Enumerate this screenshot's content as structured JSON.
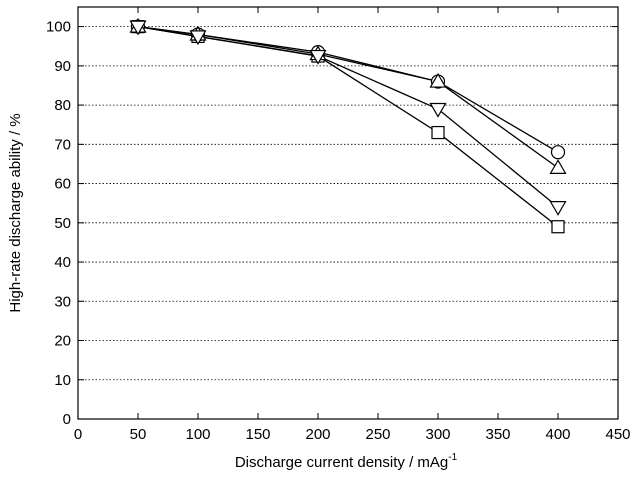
{
  "chart_data": {
    "type": "line",
    "xlabel": "Discharge current density / mAg",
    "xlabel_superscript": "-1",
    "ylabel": "High-rate discharge ability / %",
    "x": [
      50,
      100,
      200,
      300,
      400
    ],
    "series": [
      {
        "marker": "square",
        "color": "#000000",
        "values": [
          100,
          97.5,
          92.5,
          73,
          49
        ]
      },
      {
        "marker": "circle",
        "color": "#000000",
        "values": [
          100,
          98,
          93.5,
          86,
          68
        ]
      },
      {
        "marker": "triangle-up",
        "color": "#000000",
        "values": [
          100,
          98,
          93,
          86,
          64
        ]
      },
      {
        "marker": "triangle-down",
        "color": "#000000",
        "values": [
          100,
          97.5,
          92.5,
          79,
          54
        ]
      }
    ],
    "xlim": [
      0,
      450
    ],
    "xticks": [
      0,
      50,
      100,
      150,
      200,
      250,
      300,
      350,
      400,
      450
    ],
    "ylim": [
      0,
      105
    ],
    "yticks": [
      0,
      10,
      20,
      30,
      40,
      50,
      60,
      70,
      80,
      90,
      100
    ],
    "grid": true
  }
}
